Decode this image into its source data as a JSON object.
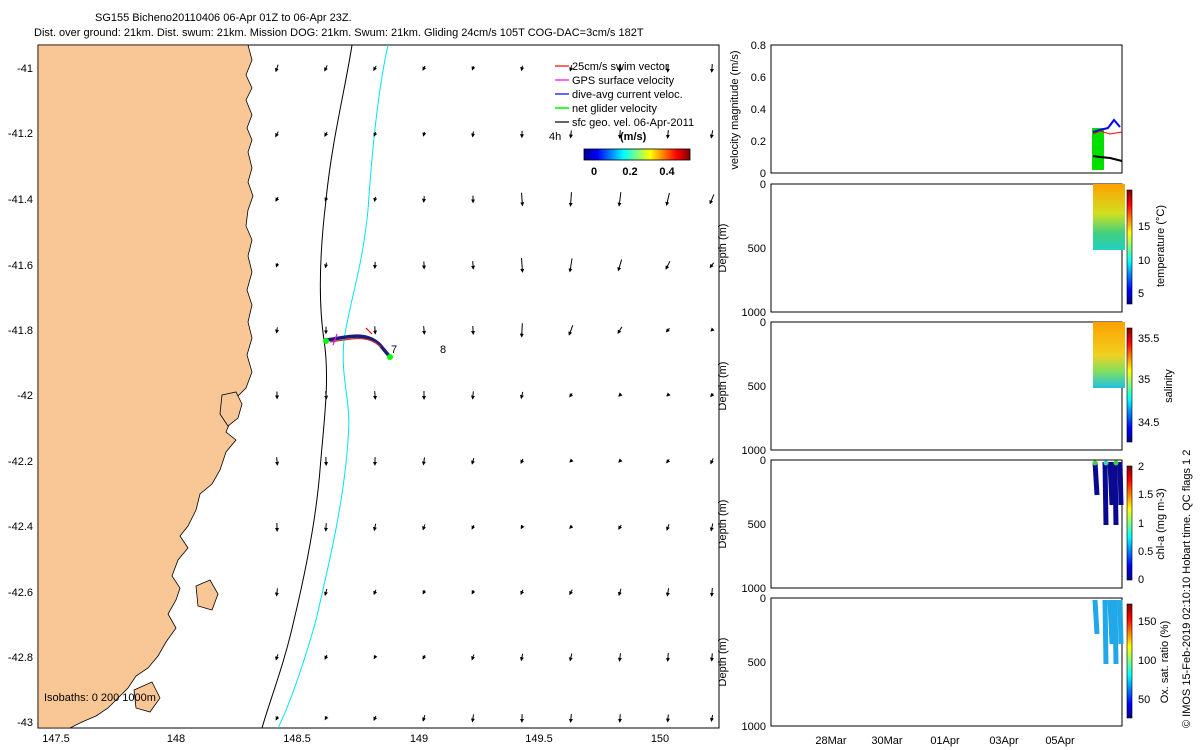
{
  "header": {
    "title_line1": "SG155 Bicheno20110406 06-Apr 01Z to 06-Apr 23Z.",
    "title_line2": "Dist. over ground: 21km. Dist. swum: 21km. Mission DOG: 21km. Swum: 21km. Gliding 24cm/s 105T COG-DAC=3cm/s 182T"
  },
  "map": {
    "lat_ticks": [
      "-41",
      "-41.2",
      "-41.4",
      "-41.6",
      "-41.8",
      "-42",
      "-42.2",
      "-42.4",
      "-42.6",
      "-42.8",
      "-43"
    ],
    "lon_ticks": [
      "147.5",
      "148",
      "148.5",
      "149",
      "149.5",
      "150"
    ],
    "legend": [
      {
        "label": "25cm/s swim vector",
        "color": "#ff0000"
      },
      {
        "label": "GPS surface velocity",
        "color": "#ff00ff"
      },
      {
        "label": "dive-avg current veloc.",
        "color": "#0000ff"
      },
      {
        "label": "net glider velocity",
        "color": "#00ff00"
      },
      {
        "label": "sfc geo. vel. 06-Apr-2011",
        "color": "#000000"
      }
    ],
    "colorbar_label": "(m/s)",
    "colorbar_ticks": [
      "0",
      "0.2",
      "0.4"
    ],
    "time_label_4h": "4h",
    "waypoint_7": "7",
    "waypoint_8": "8",
    "isobaths_label": "Isobaths: 0   200   1000m",
    "land_color": "#f9c795",
    "isobath_200_color": "#000000",
    "isobath_1000_color": "#00e5ee"
  },
  "panels": {
    "velocity": {
      "ylabel": "velocity magnitude (m/s)",
      "yticks": [
        "0.8",
        "0.6",
        "0.4",
        "0.2",
        "0"
      ]
    },
    "temperature": {
      "ylabel": "Depth (m)",
      "yticks": [
        "0",
        "500",
        "1000"
      ],
      "cbar_label": "temperature (°C)",
      "cbar_ticks": [
        "15",
        "10",
        "5"
      ]
    },
    "salinity": {
      "ylabel": "Depth (m)",
      "yticks": [
        "0",
        "500",
        "1000"
      ],
      "cbar_label": "salinity",
      "cbar_ticks": [
        "35.5",
        "35",
        "34.5"
      ]
    },
    "chla": {
      "ylabel": "Depth (m)",
      "yticks": [
        "0",
        "500",
        "1000"
      ],
      "cbar_label": "chl-a (mg m-3)",
      "cbar_ticks": [
        "2",
        "1.5",
        "1",
        "0.5",
        "0"
      ]
    },
    "oxygen": {
      "ylabel": "Depth (m)",
      "yticks": [
        "0",
        "500",
        "1000"
      ],
      "cbar_label": "Ox. sat. ratio (%)",
      "cbar_ticks": [
        "150",
        "100",
        "50"
      ]
    },
    "time_ticks": [
      "28Mar",
      "30Mar",
      "01Apr",
      "03Apr",
      "05Apr"
    ]
  },
  "footer": {
    "credit": "© IMOS 15-Feb-2019 02:10:10 Hobart time. QC flags 1  2"
  }
}
